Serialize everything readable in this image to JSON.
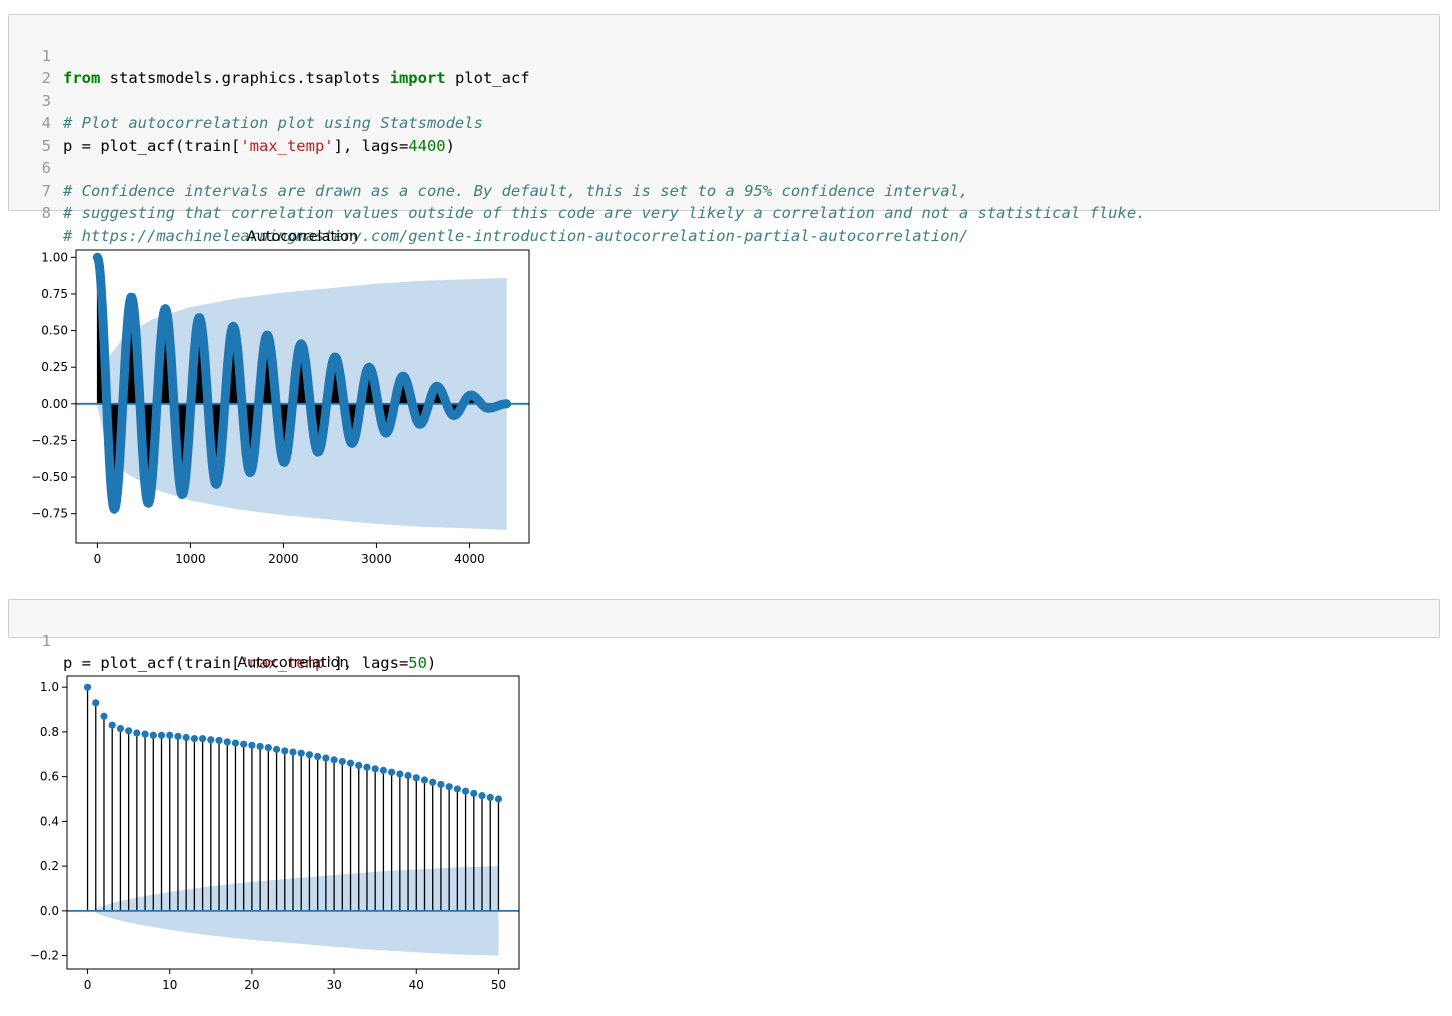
{
  "cell1": {
    "line_numbers": [
      "1",
      "2",
      "3",
      "4",
      "5",
      "6",
      "7",
      "8"
    ],
    "l1": {
      "kw1": "from",
      "mod": " statsmodels.graphics.tsaplots ",
      "kw2": "import",
      "name": " plot_acf"
    },
    "l3": "# Plot autocorrelation plot using Statsmodels",
    "l4": {
      "pre": "p = plot_acf(train[",
      "str": "'max_temp'",
      "mid": "], lags=",
      "num": "4400",
      "post": ")"
    },
    "l6": "# Confidence intervals are drawn as a cone. By default, this is set to a 95% confidence interval,",
    "l7": "# suggesting that correlation values outside of this code are very likely a correlation and not a statistical fluke.",
    "l8": "# https://machinelearningmastery.com/gentle-introduction-autocorrelation-partial-autocorrelation/"
  },
  "cell2": {
    "line_numbers": [
      "1"
    ],
    "l1": {
      "pre": "p = plot_acf(train[",
      "str": "'max_temp'",
      "mid": "], lags=",
      "num": "50",
      "post": ")"
    }
  },
  "colors": {
    "marker": "#1f77b4",
    "band": "#c6dbee",
    "stem": "#000000"
  },
  "chart_data": [
    {
      "type": "scatter",
      "title": "Autocorrelation",
      "xlabel": "",
      "ylabel": "",
      "xlim": [
        -230,
        4640
      ],
      "ylim": [
        -0.95,
        1.05
      ],
      "x_ticks": [
        0,
        1000,
        2000,
        3000,
        4000
      ],
      "x_tick_labels": [
        "0",
        "1000",
        "2000",
        "3000",
        "4000"
      ],
      "y_ticks": [
        1.0,
        0.75,
        0.5,
        0.25,
        0.0,
        -0.25,
        -0.5,
        -0.75
      ],
      "y_tick_labels": [
        "1.00",
        "0.75",
        "0.50",
        "0.25",
        "0.00",
        "−0.25",
        "−0.50",
        "−0.75"
      ],
      "grid": false,
      "lags": 4400,
      "acf_start_value": 1.0,
      "peaks": [
        {
          "lag": 365,
          "value": 0.73
        },
        {
          "lag": 730,
          "value": 0.65
        },
        {
          "lag": 1095,
          "value": 0.59
        },
        {
          "lag": 1460,
          "value": 0.53
        },
        {
          "lag": 1825,
          "value": 0.47
        },
        {
          "lag": 2190,
          "value": 0.41
        },
        {
          "lag": 2555,
          "value": 0.32
        },
        {
          "lag": 2920,
          "value": 0.25
        },
        {
          "lag": 3285,
          "value": 0.19
        },
        {
          "lag": 3650,
          "value": 0.12
        },
        {
          "lag": 4015,
          "value": 0.06
        }
      ],
      "troughs": [
        {
          "lag": 182,
          "value": -0.72
        },
        {
          "lag": 547,
          "value": -0.68
        },
        {
          "lag": 912,
          "value": -0.62
        },
        {
          "lag": 1277,
          "value": -0.55
        },
        {
          "lag": 1642,
          "value": -0.47
        },
        {
          "lag": 2007,
          "value": -0.4
        },
        {
          "lag": 2372,
          "value": -0.33
        },
        {
          "lag": 2737,
          "value": -0.27
        },
        {
          "lag": 3102,
          "value": -0.2
        },
        {
          "lag": 3467,
          "value": -0.14
        },
        {
          "lag": 3832,
          "value": -0.08
        },
        {
          "lag": 4200,
          "value": -0.03
        }
      ],
      "confidence_band": {
        "x": [
          0,
          100,
          300,
          600,
          1000,
          1500,
          2000,
          2500,
          3000,
          3500,
          4000,
          4400
        ],
        "upper": [
          0.02,
          0.3,
          0.47,
          0.58,
          0.66,
          0.72,
          0.76,
          0.79,
          0.82,
          0.84,
          0.85,
          0.86
        ],
        "lower": [
          -0.02,
          -0.3,
          -0.47,
          -0.58,
          -0.66,
          -0.72,
          -0.76,
          -0.79,
          -0.82,
          -0.84,
          -0.85,
          -0.86
        ]
      }
    },
    {
      "type": "scatter",
      "title": "Autocorrelation",
      "xlabel": "",
      "ylabel": "",
      "xlim": [
        -2.5,
        52.5
      ],
      "ylim": [
        -0.26,
        1.05
      ],
      "x_ticks": [
        0,
        10,
        20,
        30,
        40,
        50
      ],
      "x_tick_labels": [
        "0",
        "10",
        "20",
        "30",
        "40",
        "50"
      ],
      "y_ticks": [
        1.0,
        0.8,
        0.6,
        0.4,
        0.2,
        0.0,
        -0.2
      ],
      "y_tick_labels": [
        "1.0",
        "0.8",
        "0.6",
        "0.4",
        "0.2",
        "0.0",
        "−0.2"
      ],
      "grid": false,
      "x": [
        0,
        1,
        2,
        3,
        4,
        5,
        6,
        7,
        8,
        9,
        10,
        11,
        12,
        13,
        14,
        15,
        16,
        17,
        18,
        19,
        20,
        21,
        22,
        23,
        24,
        25,
        26,
        27,
        28,
        29,
        30,
        31,
        32,
        33,
        34,
        35,
        36,
        37,
        38,
        39,
        40,
        41,
        42,
        43,
        44,
        45,
        46,
        47,
        48,
        49,
        50
      ],
      "values": [
        1.0,
        0.93,
        0.87,
        0.83,
        0.815,
        0.805,
        0.795,
        0.79,
        0.785,
        0.785,
        0.785,
        0.78,
        0.775,
        0.77,
        0.77,
        0.765,
        0.762,
        0.755,
        0.75,
        0.745,
        0.74,
        0.735,
        0.73,
        0.722,
        0.715,
        0.71,
        0.705,
        0.698,
        0.69,
        0.683,
        0.675,
        0.668,
        0.66,
        0.65,
        0.642,
        0.635,
        0.628,
        0.62,
        0.612,
        0.605,
        0.595,
        0.585,
        0.575,
        0.565,
        0.555,
        0.545,
        0.535,
        0.525,
        0.515,
        0.507,
        0.5
      ],
      "confidence_band": {
        "x": [
          1,
          3,
          6,
          10,
          15,
          20,
          25,
          30,
          35,
          40,
          45,
          50
        ],
        "upper": [
          0.01,
          0.035,
          0.06,
          0.085,
          0.11,
          0.13,
          0.145,
          0.16,
          0.175,
          0.185,
          0.195,
          0.2
        ],
        "lower": [
          -0.01,
          -0.035,
          -0.06,
          -0.085,
          -0.11,
          -0.13,
          -0.145,
          -0.16,
          -0.175,
          -0.185,
          -0.195,
          -0.2
        ]
      }
    }
  ]
}
